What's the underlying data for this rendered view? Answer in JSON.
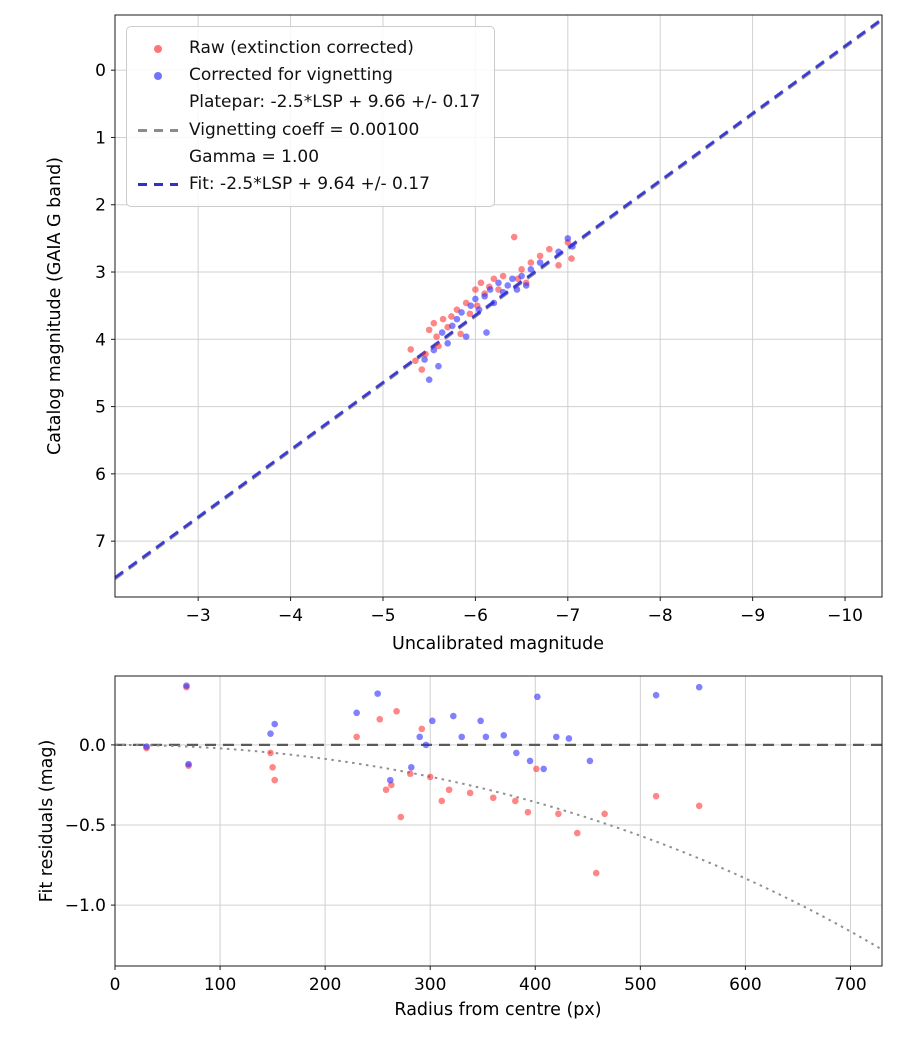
{
  "chart_data": [
    {
      "type": "scatter",
      "title": "",
      "xlabel": "Uncalibrated magnitude",
      "ylabel": "Catalog magnitude (GAIA G band)",
      "x_inverted": true,
      "y_inverted": true,
      "xlim": [
        -2.1,
        -10.4
      ],
      "ylim_top_bottom": [
        -0.82,
        7.83
      ],
      "xticks": [
        -3,
        -4,
        -5,
        -6,
        -7,
        -8,
        -9,
        -10
      ],
      "xticklabels": [
        "−3",
        "−4",
        "−5",
        "−6",
        "−7",
        "−8",
        "−9",
        "−10"
      ],
      "yticks": [
        0,
        1,
        2,
        3,
        4,
        5,
        6,
        7
      ],
      "yticklabels": [
        "0",
        "1",
        "2",
        "3",
        "4",
        "5",
        "6",
        "7"
      ],
      "grid": true,
      "legend": [
        {
          "marker": "dot",
          "color": "rgba(255,45,45,0.65)",
          "label": "Raw (extinction corrected)"
        },
        {
          "marker": "dot",
          "color": "rgba(55,55,255,0.7)",
          "label": "Corrected for vignetting"
        },
        {
          "marker": "dash",
          "color": "#8c8c8c",
          "label": "Platepar: -2.5*LSP + 9.66 +/- 0.17\nVignetting coeff = 0.00100\nGamma = 1.00"
        },
        {
          "marker": "dash",
          "color": "#3030cf",
          "label": "Fit: -2.5*LSP + 9.64 +/- 0.17"
        }
      ],
      "platepar_line": {
        "slope": 1,
        "intercept": 9.66,
        "color": "#8c8c8c",
        "style": "dashed"
      },
      "fit_line": {
        "slope": 1,
        "intercept": 9.64,
        "color": "rgba(40,40,215,0.85)",
        "style": "dashed"
      },
      "series": [
        {
          "name": "Raw (extinction corrected)",
          "color": "rgba(255,35,35,0.55)",
          "points": [
            [
              -5.3,
              4.15
            ],
            [
              -5.35,
              4.32
            ],
            [
              -5.42,
              4.45
            ],
            [
              -5.46,
              4.22
            ],
            [
              -5.5,
              3.86
            ],
            [
              -5.55,
              3.76
            ],
            [
              -5.58,
              3.96
            ],
            [
              -5.6,
              4.1
            ],
            [
              -5.65,
              3.7
            ],
            [
              -5.7,
              3.82
            ],
            [
              -5.74,
              3.66
            ],
            [
              -5.8,
              3.56
            ],
            [
              -5.84,
              3.92
            ],
            [
              -5.9,
              3.46
            ],
            [
              -5.94,
              3.62
            ],
            [
              -6.0,
              3.26
            ],
            [
              -6.02,
              3.5
            ],
            [
              -6.06,
              3.16
            ],
            [
              -6.1,
              3.32
            ],
            [
              -6.15,
              3.22
            ],
            [
              -6.2,
              3.1
            ],
            [
              -6.25,
              3.26
            ],
            [
              -6.3,
              3.06
            ],
            [
              -6.42,
              2.48
            ],
            [
              -6.46,
              3.1
            ],
            [
              -6.5,
              2.96
            ],
            [
              -6.55,
              3.16
            ],
            [
              -6.6,
              2.86
            ],
            [
              -6.7,
              2.76
            ],
            [
              -6.8,
              2.66
            ],
            [
              -6.9,
              2.9
            ],
            [
              -7.0,
              2.56
            ],
            [
              -7.04,
              2.8
            ]
          ]
        },
        {
          "name": "Corrected for vignetting",
          "color": "rgba(45,45,255,0.6)",
          "points": [
            [
              -5.45,
              4.3
            ],
            [
              -5.5,
              4.6
            ],
            [
              -5.55,
              4.16
            ],
            [
              -5.6,
              4.4
            ],
            [
              -5.64,
              3.9
            ],
            [
              -5.7,
              4.06
            ],
            [
              -5.75,
              3.8
            ],
            [
              -5.8,
              3.7
            ],
            [
              -5.85,
              3.6
            ],
            [
              -5.9,
              3.96
            ],
            [
              -5.95,
              3.5
            ],
            [
              -6.0,
              3.4
            ],
            [
              -6.04,
              3.56
            ],
            [
              -6.1,
              3.36
            ],
            [
              -6.12,
              3.9
            ],
            [
              -6.16,
              3.26
            ],
            [
              -6.2,
              3.46
            ],
            [
              -6.25,
              3.16
            ],
            [
              -6.3,
              3.3
            ],
            [
              -6.35,
              3.2
            ],
            [
              -6.4,
              3.1
            ],
            [
              -6.45,
              3.26
            ],
            [
              -6.5,
              3.06
            ],
            [
              -6.55,
              3.2
            ],
            [
              -6.6,
              2.96
            ],
            [
              -6.7,
              2.86
            ],
            [
              -6.9,
              2.7
            ],
            [
              -7.0,
              2.5
            ],
            [
              -7.05,
              2.62
            ]
          ]
        }
      ]
    },
    {
      "type": "scatter",
      "title": "",
      "xlabel": "Radius from centre (px)",
      "ylabel": "Fit residuals (mag)",
      "x_inverted": false,
      "y_inverted": false,
      "xlim": [
        0,
        730
      ],
      "ylim_top_bottom": [
        0.43,
        -1.38
      ],
      "xticks": [
        0,
        100,
        200,
        300,
        400,
        500,
        600,
        700
      ],
      "xticklabels": [
        "0",
        "100",
        "200",
        "300",
        "400",
        "500",
        "600",
        "700"
      ],
      "yticks": [
        0,
        -0.5,
        -1
      ],
      "yticklabels": [
        "0.0",
        "−0.5",
        "−1.0"
      ],
      "grid": true,
      "zero_line": {
        "y": 0,
        "color": "#5a5a5a",
        "style": "dashed"
      },
      "vignetting_curve": {
        "coeff": 0.001,
        "formula": "residual = 10*log10(cos(0.001*r))",
        "color": "#909090",
        "style": "dotted"
      },
      "series": [
        {
          "name": "Raw (extinction corrected)",
          "color": "rgba(255,35,35,0.55)",
          "points": [
            [
              30,
              -0.02
            ],
            [
              68,
              0.36
            ],
            [
              70,
              -0.13
            ],
            [
              148,
              -0.05
            ],
            [
              150,
              -0.14
            ],
            [
              152,
              -0.22
            ],
            [
              230,
              0.05
            ],
            [
              252,
              0.16
            ],
            [
              258,
              -0.28
            ],
            [
              263,
              -0.25
            ],
            [
              268,
              0.21
            ],
            [
              272,
              -0.45
            ],
            [
              281,
              -0.18
            ],
            [
              292,
              0.1
            ],
            [
              300,
              -0.2
            ],
            [
              311,
              -0.35
            ],
            [
              318,
              -0.28
            ],
            [
              338,
              -0.3
            ],
            [
              360,
              -0.33
            ],
            [
              381,
              -0.35
            ],
            [
              393,
              -0.42
            ],
            [
              401,
              -0.15
            ],
            [
              422,
              -0.43
            ],
            [
              440,
              -0.55
            ],
            [
              458,
              -0.8
            ],
            [
              466,
              -0.43
            ],
            [
              515,
              -0.32
            ],
            [
              556,
              -0.38
            ]
          ]
        },
        {
          "name": "Corrected for vignetting",
          "color": "rgba(45,45,255,0.6)",
          "points": [
            [
              30,
              -0.01
            ],
            [
              68,
              0.37
            ],
            [
              70,
              -0.12
            ],
            [
              148,
              0.07
            ],
            [
              152,
              0.13
            ],
            [
              230,
              0.2
            ],
            [
              250,
              0.32
            ],
            [
              262,
              -0.22
            ],
            [
              282,
              -0.14
            ],
            [
              290,
              0.05
            ],
            [
              296,
              0.0
            ],
            [
              302,
              0.15
            ],
            [
              322,
              0.18
            ],
            [
              330,
              0.05
            ],
            [
              348,
              0.15
            ],
            [
              353,
              0.05
            ],
            [
              370,
              0.06
            ],
            [
              382,
              -0.05
            ],
            [
              395,
              -0.1
            ],
            [
              402,
              0.3
            ],
            [
              408,
              -0.15
            ],
            [
              420,
              0.05
            ],
            [
              432,
              0.04
            ],
            [
              452,
              -0.1
            ],
            [
              515,
              0.31
            ],
            [
              556,
              0.36
            ]
          ]
        }
      ]
    }
  ]
}
